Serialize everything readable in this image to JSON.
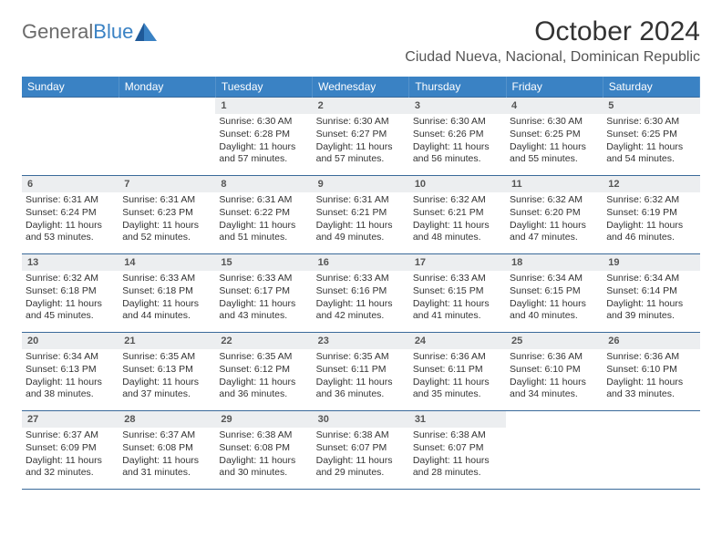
{
  "brand": {
    "name_part1": "General",
    "name_part2": "Blue"
  },
  "title": "October 2024",
  "location": "Ciudad Nueva, Nacional, Dominican Republic",
  "columns": [
    "Sunday",
    "Monday",
    "Tuesday",
    "Wednesday",
    "Thursday",
    "Friday",
    "Saturday"
  ],
  "colors": {
    "header_bg": "#3a82c4",
    "header_fg": "#ffffff",
    "daynum_bg": "#eceef0",
    "grid_line": "#3a6a9a",
    "text": "#333333",
    "logo_gray": "#6b6b6b",
    "logo_blue": "#3a82c4"
  },
  "weeks": [
    [
      {
        "empty": true
      },
      {
        "empty": true
      },
      {
        "num": "1",
        "sunrise": "Sunrise: 6:30 AM",
        "sunset": "Sunset: 6:28 PM",
        "daylight": "Daylight: 11 hours and 57 minutes."
      },
      {
        "num": "2",
        "sunrise": "Sunrise: 6:30 AM",
        "sunset": "Sunset: 6:27 PM",
        "daylight": "Daylight: 11 hours and 57 minutes."
      },
      {
        "num": "3",
        "sunrise": "Sunrise: 6:30 AM",
        "sunset": "Sunset: 6:26 PM",
        "daylight": "Daylight: 11 hours and 56 minutes."
      },
      {
        "num": "4",
        "sunrise": "Sunrise: 6:30 AM",
        "sunset": "Sunset: 6:25 PM",
        "daylight": "Daylight: 11 hours and 55 minutes."
      },
      {
        "num": "5",
        "sunrise": "Sunrise: 6:30 AM",
        "sunset": "Sunset: 6:25 PM",
        "daylight": "Daylight: 11 hours and 54 minutes."
      }
    ],
    [
      {
        "num": "6",
        "sunrise": "Sunrise: 6:31 AM",
        "sunset": "Sunset: 6:24 PM",
        "daylight": "Daylight: 11 hours and 53 minutes."
      },
      {
        "num": "7",
        "sunrise": "Sunrise: 6:31 AM",
        "sunset": "Sunset: 6:23 PM",
        "daylight": "Daylight: 11 hours and 52 minutes."
      },
      {
        "num": "8",
        "sunrise": "Sunrise: 6:31 AM",
        "sunset": "Sunset: 6:22 PM",
        "daylight": "Daylight: 11 hours and 51 minutes."
      },
      {
        "num": "9",
        "sunrise": "Sunrise: 6:31 AM",
        "sunset": "Sunset: 6:21 PM",
        "daylight": "Daylight: 11 hours and 49 minutes."
      },
      {
        "num": "10",
        "sunrise": "Sunrise: 6:32 AM",
        "sunset": "Sunset: 6:21 PM",
        "daylight": "Daylight: 11 hours and 48 minutes."
      },
      {
        "num": "11",
        "sunrise": "Sunrise: 6:32 AM",
        "sunset": "Sunset: 6:20 PM",
        "daylight": "Daylight: 11 hours and 47 minutes."
      },
      {
        "num": "12",
        "sunrise": "Sunrise: 6:32 AM",
        "sunset": "Sunset: 6:19 PM",
        "daylight": "Daylight: 11 hours and 46 minutes."
      }
    ],
    [
      {
        "num": "13",
        "sunrise": "Sunrise: 6:32 AM",
        "sunset": "Sunset: 6:18 PM",
        "daylight": "Daylight: 11 hours and 45 minutes."
      },
      {
        "num": "14",
        "sunrise": "Sunrise: 6:33 AM",
        "sunset": "Sunset: 6:18 PM",
        "daylight": "Daylight: 11 hours and 44 minutes."
      },
      {
        "num": "15",
        "sunrise": "Sunrise: 6:33 AM",
        "sunset": "Sunset: 6:17 PM",
        "daylight": "Daylight: 11 hours and 43 minutes."
      },
      {
        "num": "16",
        "sunrise": "Sunrise: 6:33 AM",
        "sunset": "Sunset: 6:16 PM",
        "daylight": "Daylight: 11 hours and 42 minutes."
      },
      {
        "num": "17",
        "sunrise": "Sunrise: 6:33 AM",
        "sunset": "Sunset: 6:15 PM",
        "daylight": "Daylight: 11 hours and 41 minutes."
      },
      {
        "num": "18",
        "sunrise": "Sunrise: 6:34 AM",
        "sunset": "Sunset: 6:15 PM",
        "daylight": "Daylight: 11 hours and 40 minutes."
      },
      {
        "num": "19",
        "sunrise": "Sunrise: 6:34 AM",
        "sunset": "Sunset: 6:14 PM",
        "daylight": "Daylight: 11 hours and 39 minutes."
      }
    ],
    [
      {
        "num": "20",
        "sunrise": "Sunrise: 6:34 AM",
        "sunset": "Sunset: 6:13 PM",
        "daylight": "Daylight: 11 hours and 38 minutes."
      },
      {
        "num": "21",
        "sunrise": "Sunrise: 6:35 AM",
        "sunset": "Sunset: 6:13 PM",
        "daylight": "Daylight: 11 hours and 37 minutes."
      },
      {
        "num": "22",
        "sunrise": "Sunrise: 6:35 AM",
        "sunset": "Sunset: 6:12 PM",
        "daylight": "Daylight: 11 hours and 36 minutes."
      },
      {
        "num": "23",
        "sunrise": "Sunrise: 6:35 AM",
        "sunset": "Sunset: 6:11 PM",
        "daylight": "Daylight: 11 hours and 36 minutes."
      },
      {
        "num": "24",
        "sunrise": "Sunrise: 6:36 AM",
        "sunset": "Sunset: 6:11 PM",
        "daylight": "Daylight: 11 hours and 35 minutes."
      },
      {
        "num": "25",
        "sunrise": "Sunrise: 6:36 AM",
        "sunset": "Sunset: 6:10 PM",
        "daylight": "Daylight: 11 hours and 34 minutes."
      },
      {
        "num": "26",
        "sunrise": "Sunrise: 6:36 AM",
        "sunset": "Sunset: 6:10 PM",
        "daylight": "Daylight: 11 hours and 33 minutes."
      }
    ],
    [
      {
        "num": "27",
        "sunrise": "Sunrise: 6:37 AM",
        "sunset": "Sunset: 6:09 PM",
        "daylight": "Daylight: 11 hours and 32 minutes."
      },
      {
        "num": "28",
        "sunrise": "Sunrise: 6:37 AM",
        "sunset": "Sunset: 6:08 PM",
        "daylight": "Daylight: 11 hours and 31 minutes."
      },
      {
        "num": "29",
        "sunrise": "Sunrise: 6:38 AM",
        "sunset": "Sunset: 6:08 PM",
        "daylight": "Daylight: 11 hours and 30 minutes."
      },
      {
        "num": "30",
        "sunrise": "Sunrise: 6:38 AM",
        "sunset": "Sunset: 6:07 PM",
        "daylight": "Daylight: 11 hours and 29 minutes."
      },
      {
        "num": "31",
        "sunrise": "Sunrise: 6:38 AM",
        "sunset": "Sunset: 6:07 PM",
        "daylight": "Daylight: 11 hours and 28 minutes."
      },
      {
        "empty": true
      },
      {
        "empty": true
      }
    ]
  ]
}
